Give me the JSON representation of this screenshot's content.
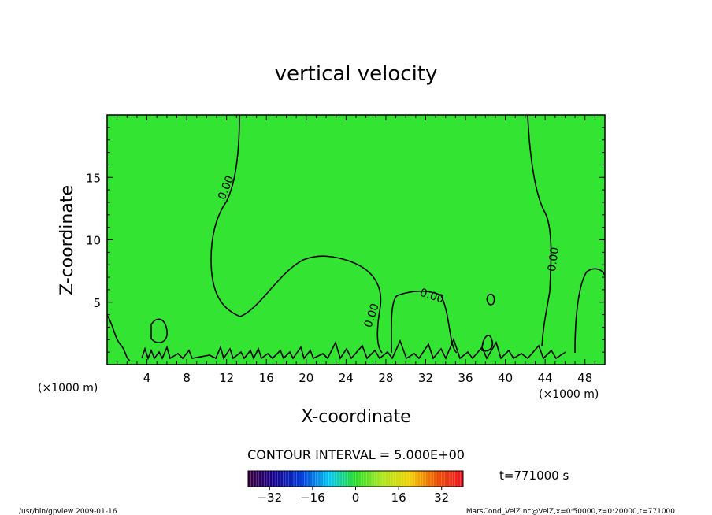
{
  "chart_data": {
    "type": "contour",
    "title": "vertical velocity",
    "xlabel": "X-coordinate",
    "ylabel": "Z-coordinate",
    "x_units": "(×1000 m)",
    "y_units": "(×1000 m)",
    "xlim": [
      0,
      50
    ],
    "ylim": [
      0,
      20
    ],
    "x_ticks": [
      4,
      8,
      12,
      16,
      20,
      24,
      28,
      32,
      36,
      40,
      44,
      48
    ],
    "y_ticks": [
      5,
      10,
      15
    ],
    "contour_interval_label": "CONTOUR INTERVAL = 5.000E+00",
    "contour_labels": [
      "0.00",
      "0.00",
      "0.00",
      "0.00"
    ],
    "time_label": "t=771000 s",
    "colorbar": {
      "range": [
        -40,
        40
      ],
      "ticks": [
        -32,
        -16,
        0,
        16,
        32
      ],
      "tick_labels": [
        "−32",
        "−16",
        "0",
        "16",
        "32"
      ]
    },
    "fill_color": "#33e433",
    "footer_left": "/usr/bin/gpview  2009-01-16",
    "footer_right": "MarsCond_VelZ.nc@VelZ,x=0:50000,z=0:20000,t=771000"
  }
}
